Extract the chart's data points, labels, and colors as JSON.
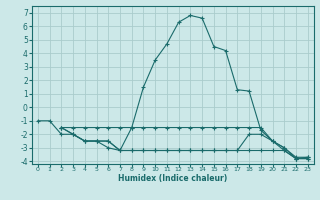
{
  "xlabel": "Humidex (Indice chaleur)",
  "background_color": "#cce8e8",
  "grid_color": "#aacccc",
  "line_color": "#1a6b6b",
  "xlim": [
    -0.5,
    23.5
  ],
  "ylim": [
    -4.2,
    7.5
  ],
  "xticks": [
    0,
    1,
    2,
    3,
    4,
    5,
    6,
    7,
    8,
    9,
    10,
    11,
    12,
    13,
    14,
    15,
    16,
    17,
    18,
    19,
    20,
    21,
    22,
    23
  ],
  "yticks": [
    -4,
    -3,
    -2,
    -1,
    0,
    1,
    2,
    3,
    4,
    5,
    6,
    7
  ],
  "series": [
    {
      "x": [
        0,
        1,
        2,
        3,
        4,
        5,
        6,
        7,
        8,
        9,
        10,
        11,
        12,
        13,
        14,
        15,
        16,
        17,
        18,
        19,
        20,
        21,
        22,
        23
      ],
      "y": [
        -1,
        -1,
        -2,
        -2,
        -2.5,
        -2.5,
        -3,
        -3.2,
        -1.5,
        1.5,
        3.5,
        4.7,
        6.3,
        6.8,
        6.6,
        4.5,
        4.2,
        1.3,
        1.2,
        -1.7,
        -2.5,
        -3.2,
        -3.8,
        -3.7
      ]
    },
    {
      "x": [
        2,
        3,
        4,
        5,
        6,
        7,
        8,
        9,
        10,
        11,
        12,
        13,
        14,
        15,
        16,
        17,
        18,
        19,
        20,
        21,
        22,
        23
      ],
      "y": [
        -1.5,
        -1.5,
        -1.5,
        -1.5,
        -1.5,
        -1.5,
        -1.5,
        -1.5,
        -1.5,
        -1.5,
        -1.5,
        -1.5,
        -1.5,
        -1.5,
        -1.5,
        -1.5,
        -1.5,
        -1.5,
        -2.5,
        -3.0,
        -3.7,
        -3.7
      ]
    },
    {
      "x": [
        2,
        3,
        4,
        5,
        6,
        7,
        8,
        9,
        10,
        11,
        12,
        13,
        14,
        15,
        16,
        17,
        18,
        19,
        20,
        21,
        22,
        23
      ],
      "y": [
        -1.5,
        -2.0,
        -2.5,
        -2.5,
        -2.5,
        -3.2,
        -3.2,
        -3.2,
        -3.2,
        -3.2,
        -3.2,
        -3.2,
        -3.2,
        -3.2,
        -3.2,
        -3.2,
        -3.2,
        -3.2,
        -3.2,
        -3.2,
        -3.8,
        -3.8
      ]
    },
    {
      "x": [
        2,
        3,
        4,
        5,
        6,
        7,
        8,
        9,
        10,
        11,
        12,
        13,
        14,
        15,
        16,
        17,
        18,
        19,
        20,
        21,
        22,
        23
      ],
      "y": [
        -1.5,
        -2.0,
        -2.5,
        -2.5,
        -2.5,
        -3.2,
        -3.2,
        -3.2,
        -3.2,
        -3.2,
        -3.2,
        -3.2,
        -3.2,
        -3.2,
        -3.2,
        -3.2,
        -2.0,
        -2.0,
        -2.5,
        -3.0,
        -3.8,
        -3.8
      ]
    }
  ]
}
